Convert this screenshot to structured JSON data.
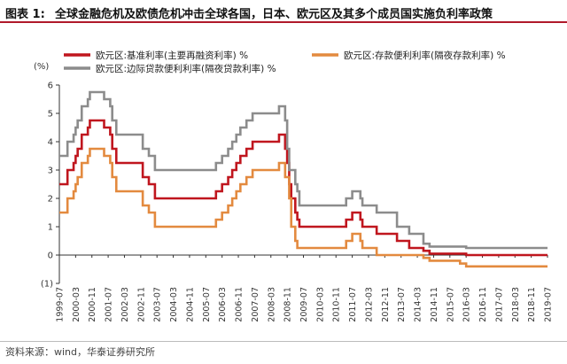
{
  "header": {
    "figure_label": "图表 1:",
    "title": "全球金融危机及欧债危机冲击全球各国，日本、欧元区及其多个成员国实施负利率政策"
  },
  "footer": {
    "source": "资料来源：wind，华泰证券研究所"
  },
  "chart_data": {
    "type": "line",
    "y_unit_label": "(%)",
    "ylim": [
      -1,
      6
    ],
    "y_ticks": [
      "(1)",
      "0",
      "1",
      "2",
      "3",
      "4",
      "5",
      "6"
    ],
    "y_tick_values": [
      -1,
      0,
      1,
      2,
      3,
      4,
      5,
      6
    ],
    "x_range": [
      "1999-07",
      "2019-07"
    ],
    "x_ticks": [
      "1999-07",
      "2000-03",
      "2000-11",
      "2001-07",
      "2002-03",
      "2002-11",
      "2003-07",
      "2004-03",
      "2004-11",
      "2005-07",
      "2006-03",
      "2006-11",
      "2007-07",
      "2008-03",
      "2008-11",
      "2009-07",
      "2010-03",
      "2010-11",
      "2011-07",
      "2012-03",
      "2012-11",
      "2013-07",
      "2014-03",
      "2014-11",
      "2015-07",
      "2016-03",
      "2016-11",
      "2017-07",
      "2018-03",
      "2018-11",
      "2019-07"
    ],
    "grid": false,
    "legend_position": "top-left",
    "series": [
      {
        "name": "欧元区:基准利率(主要再融资利率) %",
        "color": "#c0161e",
        "points": [
          [
            "1999-07",
            2.5
          ],
          [
            "1999-11",
            3.0
          ],
          [
            "2000-02",
            3.25
          ],
          [
            "2000-03",
            3.5
          ],
          [
            "2000-04",
            3.75
          ],
          [
            "2000-06",
            4.25
          ],
          [
            "2000-09",
            4.5
          ],
          [
            "2000-10",
            4.75
          ],
          [
            "2001-05",
            4.5
          ],
          [
            "2001-08",
            4.25
          ],
          [
            "2001-09",
            3.75
          ],
          [
            "2001-11",
            3.25
          ],
          [
            "2002-12",
            2.75
          ],
          [
            "2003-03",
            2.5
          ],
          [
            "2003-06",
            2.0
          ],
          [
            "2005-12",
            2.25
          ],
          [
            "2006-03",
            2.5
          ],
          [
            "2006-06",
            2.75
          ],
          [
            "2006-08",
            3.0
          ],
          [
            "2006-10",
            3.25
          ],
          [
            "2006-12",
            3.5
          ],
          [
            "2007-03",
            3.75
          ],
          [
            "2007-06",
            4.0
          ],
          [
            "2008-07",
            4.25
          ],
          [
            "2008-10",
            3.75
          ],
          [
            "2008-11",
            3.25
          ],
          [
            "2008-12",
            2.5
          ],
          [
            "2009-01",
            2.0
          ],
          [
            "2009-03",
            1.5
          ],
          [
            "2009-04",
            1.25
          ],
          [
            "2009-05",
            1.0
          ],
          [
            "2011-04",
            1.25
          ],
          [
            "2011-07",
            1.5
          ],
          [
            "2011-11",
            1.25
          ],
          [
            "2011-12",
            1.0
          ],
          [
            "2012-07",
            0.75
          ],
          [
            "2013-05",
            0.5
          ],
          [
            "2013-11",
            0.25
          ],
          [
            "2014-06",
            0.15
          ],
          [
            "2014-09",
            0.05
          ],
          [
            "2016-03",
            0.0
          ],
          [
            "2019-07",
            0.0
          ]
        ]
      },
      {
        "name": "欧元区:存款便利利率(隔夜存款利率) %",
        "color": "#e38a3f",
        "points": [
          [
            "1999-07",
            1.5
          ],
          [
            "1999-11",
            2.0
          ],
          [
            "2000-02",
            2.25
          ],
          [
            "2000-03",
            2.5
          ],
          [
            "2000-04",
            2.75
          ],
          [
            "2000-06",
            3.25
          ],
          [
            "2000-09",
            3.5
          ],
          [
            "2000-10",
            3.75
          ],
          [
            "2001-05",
            3.5
          ],
          [
            "2001-08",
            3.25
          ],
          [
            "2001-09",
            2.75
          ],
          [
            "2001-11",
            2.25
          ],
          [
            "2002-12",
            1.75
          ],
          [
            "2003-03",
            1.5
          ],
          [
            "2003-06",
            1.0
          ],
          [
            "2005-12",
            1.25
          ],
          [
            "2006-03",
            1.5
          ],
          [
            "2006-06",
            1.75
          ],
          [
            "2006-08",
            2.0
          ],
          [
            "2006-10",
            2.25
          ],
          [
            "2006-12",
            2.5
          ],
          [
            "2007-03",
            2.75
          ],
          [
            "2007-06",
            3.0
          ],
          [
            "2008-07",
            3.25
          ],
          [
            "2008-10",
            2.75
          ],
          [
            "2008-11",
            2.75
          ],
          [
            "2008-12",
            2.0
          ],
          [
            "2009-01",
            1.0
          ],
          [
            "2009-03",
            0.5
          ],
          [
            "2009-04",
            0.25
          ],
          [
            "2011-04",
            0.5
          ],
          [
            "2011-07",
            0.75
          ],
          [
            "2011-11",
            0.5
          ],
          [
            "2011-12",
            0.25
          ],
          [
            "2012-07",
            0.0
          ],
          [
            "2014-06",
            -0.1
          ],
          [
            "2014-09",
            -0.2
          ],
          [
            "2015-12",
            -0.3
          ],
          [
            "2016-03",
            -0.4
          ],
          [
            "2019-07",
            -0.4
          ]
        ]
      },
      {
        "name": "欧元区:边际贷款便利利率(隔夜贷款利率) %",
        "color": "#8c8c8c",
        "points": [
          [
            "1999-07",
            3.5
          ],
          [
            "1999-11",
            4.0
          ],
          [
            "2000-02",
            4.25
          ],
          [
            "2000-03",
            4.5
          ],
          [
            "2000-04",
            4.75
          ],
          [
            "2000-06",
            5.25
          ],
          [
            "2000-09",
            5.5
          ],
          [
            "2000-10",
            5.75
          ],
          [
            "2001-05",
            5.5
          ],
          [
            "2001-08",
            5.25
          ],
          [
            "2001-09",
            4.75
          ],
          [
            "2001-11",
            4.25
          ],
          [
            "2002-12",
            3.75
          ],
          [
            "2003-03",
            3.5
          ],
          [
            "2003-06",
            3.0
          ],
          [
            "2005-12",
            3.25
          ],
          [
            "2006-03",
            3.5
          ],
          [
            "2006-06",
            3.75
          ],
          [
            "2006-08",
            4.0
          ],
          [
            "2006-10",
            4.25
          ],
          [
            "2006-12",
            4.5
          ],
          [
            "2007-03",
            4.75
          ],
          [
            "2007-06",
            5.0
          ],
          [
            "2008-07",
            5.25
          ],
          [
            "2008-10",
            4.75
          ],
          [
            "2008-11",
            3.75
          ],
          [
            "2008-12",
            3.0
          ],
          [
            "2009-01",
            3.0
          ],
          [
            "2009-03",
            2.5
          ],
          [
            "2009-04",
            2.25
          ],
          [
            "2009-05",
            1.75
          ],
          [
            "2011-04",
            2.0
          ],
          [
            "2011-07",
            2.25
          ],
          [
            "2011-11",
            2.0
          ],
          [
            "2011-12",
            1.75
          ],
          [
            "2012-07",
            1.5
          ],
          [
            "2013-05",
            1.0
          ],
          [
            "2013-11",
            0.75
          ],
          [
            "2014-06",
            0.4
          ],
          [
            "2014-09",
            0.3
          ],
          [
            "2016-03",
            0.25
          ],
          [
            "2019-07",
            0.25
          ]
        ]
      }
    ]
  }
}
